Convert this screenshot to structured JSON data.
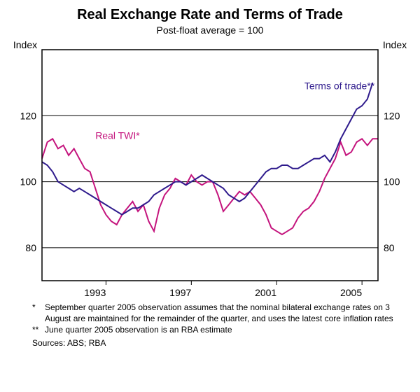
{
  "title": "Real Exchange Rate and Terms of Trade",
  "subtitle": "Post-float average = 100",
  "axis_label_left": "Index",
  "axis_label_right": "Index",
  "chart": {
    "type": "line",
    "background_color": "#ffffff",
    "axis_color": "#000000",
    "grid_color": "#000000",
    "ylim": [
      70,
      140
    ],
    "yticks": [
      80,
      100,
      120
    ],
    "ytick_labels": [
      "80",
      "100",
      "120"
    ],
    "xlim": [
      1990,
      2005.75
    ],
    "xticks": [
      1993,
      1997,
      2001,
      2005
    ],
    "xtick_labels": [
      "1993",
      "1997",
      "2001",
      "2005"
    ],
    "line_width": 2,
    "tick_fontsize": 14,
    "label_fontsize": 14,
    "title_fontsize": 20,
    "series": [
      {
        "name": "Real TWI*",
        "color": "#c4147d",
        "label_pos": {
          "x": 1992.5,
          "y": 113
        },
        "data": [
          [
            1990.0,
            107
          ],
          [
            1990.25,
            112
          ],
          [
            1990.5,
            113
          ],
          [
            1990.75,
            110
          ],
          [
            1991.0,
            111
          ],
          [
            1991.25,
            108
          ],
          [
            1991.5,
            110
          ],
          [
            1991.75,
            107
          ],
          [
            1992.0,
            104
          ],
          [
            1992.25,
            103
          ],
          [
            1992.5,
            98
          ],
          [
            1992.75,
            93
          ],
          [
            1993.0,
            90
          ],
          [
            1993.25,
            88
          ],
          [
            1993.5,
            87
          ],
          [
            1993.75,
            90
          ],
          [
            1994.0,
            92
          ],
          [
            1994.25,
            94
          ],
          [
            1994.5,
            91
          ],
          [
            1994.75,
            93
          ],
          [
            1995.0,
            88
          ],
          [
            1995.25,
            85
          ],
          [
            1995.5,
            92
          ],
          [
            1995.75,
            96
          ],
          [
            1996.0,
            98
          ],
          [
            1996.25,
            101
          ],
          [
            1996.5,
            100
          ],
          [
            1996.75,
            99
          ],
          [
            1997.0,
            102
          ],
          [
            1997.25,
            100
          ],
          [
            1997.5,
            99
          ],
          [
            1997.75,
            100
          ],
          [
            1998.0,
            100
          ],
          [
            1998.25,
            96
          ],
          [
            1998.5,
            91
          ],
          [
            1998.75,
            93
          ],
          [
            1999.0,
            95
          ],
          [
            1999.25,
            97
          ],
          [
            1999.5,
            96
          ],
          [
            1999.75,
            97
          ],
          [
            2000.0,
            95
          ],
          [
            2000.25,
            93
          ],
          [
            2000.5,
            90
          ],
          [
            2000.75,
            86
          ],
          [
            2001.0,
            85
          ],
          [
            2001.25,
            84
          ],
          [
            2001.5,
            85
          ],
          [
            2001.75,
            86
          ],
          [
            2002.0,
            89
          ],
          [
            2002.25,
            91
          ],
          [
            2002.5,
            92
          ],
          [
            2002.75,
            94
          ],
          [
            2003.0,
            97
          ],
          [
            2003.25,
            101
          ],
          [
            2003.5,
            104
          ],
          [
            2003.75,
            107
          ],
          [
            2004.0,
            112
          ],
          [
            2004.25,
            108
          ],
          [
            2004.5,
            109
          ],
          [
            2004.75,
            112
          ],
          [
            2005.0,
            113
          ],
          [
            2005.25,
            111
          ],
          [
            2005.5,
            113
          ],
          [
            2005.75,
            113
          ]
        ]
      },
      {
        "name": "Terms of trade**",
        "color": "#2e1a8c",
        "label_pos": {
          "x": 2002.3,
          "y": 128
        },
        "data": [
          [
            1990.0,
            106
          ],
          [
            1990.25,
            105
          ],
          [
            1990.5,
            103
          ],
          [
            1990.75,
            100
          ],
          [
            1991.0,
            99
          ],
          [
            1991.25,
            98
          ],
          [
            1991.5,
            97
          ],
          [
            1991.75,
            98
          ],
          [
            1992.0,
            97
          ],
          [
            1992.25,
            96
          ],
          [
            1992.5,
            95
          ],
          [
            1992.75,
            94
          ],
          [
            1993.0,
            93
          ],
          [
            1993.25,
            92
          ],
          [
            1993.5,
            91
          ],
          [
            1993.75,
            90
          ],
          [
            1994.0,
            91
          ],
          [
            1994.25,
            92
          ],
          [
            1994.5,
            92
          ],
          [
            1994.75,
            93
          ],
          [
            1995.0,
            94
          ],
          [
            1995.25,
            96
          ],
          [
            1995.5,
            97
          ],
          [
            1995.75,
            98
          ],
          [
            1996.0,
            99
          ],
          [
            1996.25,
            100
          ],
          [
            1996.5,
            100
          ],
          [
            1996.75,
            99
          ],
          [
            1997.0,
            100
          ],
          [
            1997.25,
            101
          ],
          [
            1997.5,
            102
          ],
          [
            1997.75,
            101
          ],
          [
            1998.0,
            100
          ],
          [
            1998.25,
            99
          ],
          [
            1998.5,
            98
          ],
          [
            1998.75,
            96
          ],
          [
            1999.0,
            95
          ],
          [
            1999.25,
            94
          ],
          [
            1999.5,
            95
          ],
          [
            1999.75,
            97
          ],
          [
            2000.0,
            99
          ],
          [
            2000.25,
            101
          ],
          [
            2000.5,
            103
          ],
          [
            2000.75,
            104
          ],
          [
            2001.0,
            104
          ],
          [
            2001.25,
            105
          ],
          [
            2001.5,
            105
          ],
          [
            2001.75,
            104
          ],
          [
            2002.0,
            104
          ],
          [
            2002.25,
            105
          ],
          [
            2002.5,
            106
          ],
          [
            2002.75,
            107
          ],
          [
            2003.0,
            107
          ],
          [
            2003.25,
            108
          ],
          [
            2003.5,
            106
          ],
          [
            2003.75,
            109
          ],
          [
            2004.0,
            113
          ],
          [
            2004.25,
            116
          ],
          [
            2004.5,
            119
          ],
          [
            2004.75,
            122
          ],
          [
            2005.0,
            123
          ],
          [
            2005.25,
            125
          ],
          [
            2005.5,
            130
          ]
        ]
      }
    ]
  },
  "footnote1_marker": "*",
  "footnote1": "September quarter 2005 observation assumes that the nominal bilateral exchange rates on 3 August are maintained for the remainder of the quarter, and uses the latest core inflation rates",
  "footnote2_marker": "**",
  "footnote2": "June quarter 2005 observation is an RBA estimate",
  "sources_label": "Sources: ABS; RBA"
}
